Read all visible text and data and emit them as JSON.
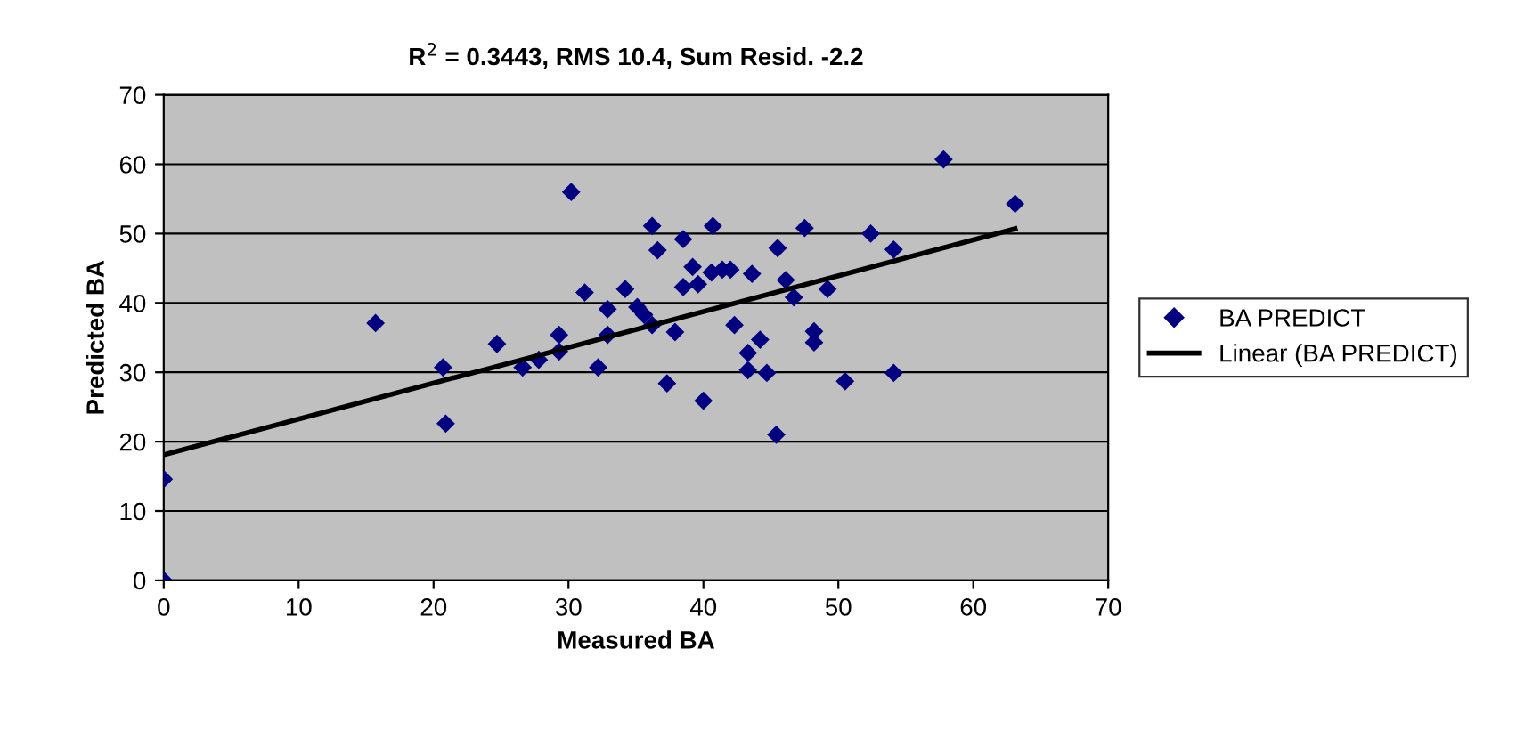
{
  "chart_data": {
    "type": "scatter",
    "title": "R$^{2}$ = 0.3443, RMS 10.4, Sum Resid. -2.2",
    "xlabel": "Measured BA",
    "ylabel": "Predicted BA",
    "xlim": [
      0,
      70
    ],
    "xticks": [
      0,
      10,
      20,
      30,
      40,
      50,
      60,
      70
    ],
    "ylim": [
      0,
      70
    ],
    "yticks": [
      0,
      10,
      20,
      30,
      40,
      50,
      60,
      70
    ],
    "grid": "y",
    "legend": "right",
    "series": [
      {
        "name": "BA PREDICT",
        "marker": "diamond",
        "color": "#000080",
        "x": [
          0,
          0,
          15.7,
          20.7,
          20.9,
          24.7,
          26.6,
          27.8,
          29.3,
          29.3,
          30.2,
          31.2,
          32.2,
          32.9,
          32.9,
          34.2,
          35.1,
          35.6,
          36.2,
          36.2,
          36.6,
          37.3,
          37.9,
          38.5,
          38.5,
          39.2,
          39.6,
          40.0,
          40.6,
          40.7,
          41.4,
          42.0,
          42.3,
          43.3,
          43.3,
          43.6,
          44.2,
          44.7,
          45.4,
          45.5,
          46.1,
          46.7,
          47.5,
          48.2,
          48.2,
          49.2,
          50.5,
          52.4,
          54.1,
          54.1,
          57.8,
          63.1
        ],
        "values": [
          14.6,
          0,
          37.1,
          30.7,
          22.6,
          34.1,
          30.7,
          31.8,
          33.0,
          35.4,
          56.0,
          41.5,
          30.7,
          35.4,
          39.1,
          42.0,
          39.4,
          38.3,
          36.8,
          51.1,
          47.6,
          28.4,
          35.8,
          49.2,
          42.3,
          45.2,
          42.7,
          25.9,
          44.4,
          51.1,
          44.8,
          44.8,
          36.8,
          30.3,
          32.8,
          44.2,
          34.7,
          29.9,
          21.0,
          47.9,
          43.3,
          40.8,
          50.8,
          35.9,
          34.3,
          42.0,
          28.7,
          50.0,
          47.7,
          29.9,
          60.7,
          54.3
        ]
      },
      {
        "name": "Linear (BA PREDICT)",
        "type": "line",
        "marker": "none",
        "line_style": "solid",
        "color": "#000000",
        "x": [
          0,
          63.1
        ],
        "values": [
          18.1,
          50.7
        ]
      }
    ]
  }
}
